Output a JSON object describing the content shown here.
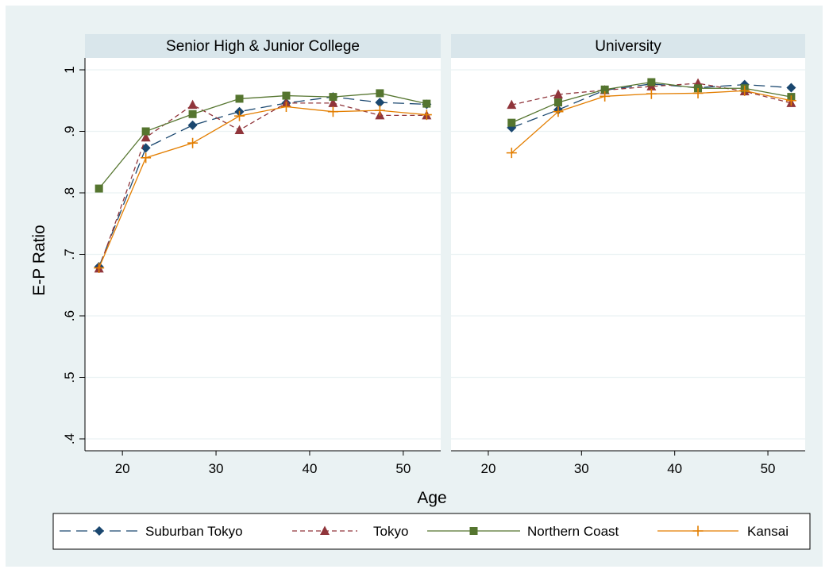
{
  "chart_data": {
    "type": "line",
    "ylabel": "E-P Ratio",
    "xlabel": "Age",
    "ylim": [
      0.4,
      1.0
    ],
    "yticks": [
      0.4,
      0.5,
      0.6,
      0.7,
      0.8,
      0.9,
      1.0
    ],
    "ytick_labels": [
      ".4",
      ".5",
      ".6",
      ".7",
      ".8",
      ".9",
      "1"
    ],
    "xlim": [
      16,
      54
    ],
    "xticks": [
      20,
      30,
      40,
      50
    ],
    "xtick_labels": [
      "20",
      "30",
      "40",
      "50"
    ],
    "grid": true,
    "legend_position": "bottom",
    "colors": {
      "Suburban Tokyo": "#1a476f",
      "Tokyo": "#90353b",
      "Northern Coast": "#55752f",
      "Kansai": "#e37e00"
    },
    "panels": [
      {
        "title": "Senior High & Junior College",
        "series": [
          {
            "name": "Suburban Tokyo",
            "x": [
              17.5,
              22.5,
              27.5,
              32.5,
              37.5,
              42.5,
              47.5,
              52.5
            ],
            "y": [
              0.68,
              0.873,
              0.91,
              0.932,
              0.946,
              0.956,
              0.947,
              0.944
            ]
          },
          {
            "name": "Tokyo",
            "x": [
              17.5,
              22.5,
              27.5,
              32.5,
              37.5,
              42.5,
              47.5,
              52.5
            ],
            "y": [
              0.677,
              0.89,
              0.943,
              0.902,
              0.946,
              0.946,
              0.926,
              0.926
            ]
          },
          {
            "name": "Northern Coast",
            "x": [
              17.5,
              22.5,
              27.5,
              32.5,
              37.5,
              42.5,
              47.5,
              52.5
            ],
            "y": [
              0.807,
              0.9,
              0.928,
              0.953,
              0.958,
              0.956,
              0.962,
              0.945
            ]
          },
          {
            "name": "Kansai",
            "x": [
              17.5,
              22.5,
              27.5,
              32.5,
              37.5,
              42.5,
              47.5,
              52.5
            ],
            "y": [
              0.678,
              0.857,
              0.881,
              0.925,
              0.94,
              0.932,
              0.934,
              0.927
            ]
          }
        ]
      },
      {
        "title": "University",
        "series": [
          {
            "name": "Suburban Tokyo",
            "x": [
              22.5,
              27.5,
              32.5,
              37.5,
              42.5,
              47.5,
              52.5
            ],
            "y": [
              0.906,
              0.935,
              0.967,
              0.977,
              0.971,
              0.976,
              0.971
            ]
          },
          {
            "name": "Tokyo",
            "x": [
              22.5,
              27.5,
              32.5,
              37.5,
              42.5,
              47.5,
              52.5
            ],
            "y": [
              0.943,
              0.96,
              0.967,
              0.973,
              0.978,
              0.965,
              0.946
            ]
          },
          {
            "name": "Northern Coast",
            "x": [
              22.5,
              27.5,
              32.5,
              37.5,
              42.5,
              47.5,
              52.5
            ],
            "y": [
              0.914,
              0.947,
              0.968,
              0.98,
              0.97,
              0.97,
              0.956
            ]
          },
          {
            "name": "Kansai",
            "x": [
              22.5,
              27.5,
              32.5,
              37.5,
              42.5,
              47.5,
              52.5
            ],
            "y": [
              0.865,
              0.932,
              0.957,
              0.961,
              0.962,
              0.966,
              0.95
            ]
          }
        ]
      }
    ]
  }
}
